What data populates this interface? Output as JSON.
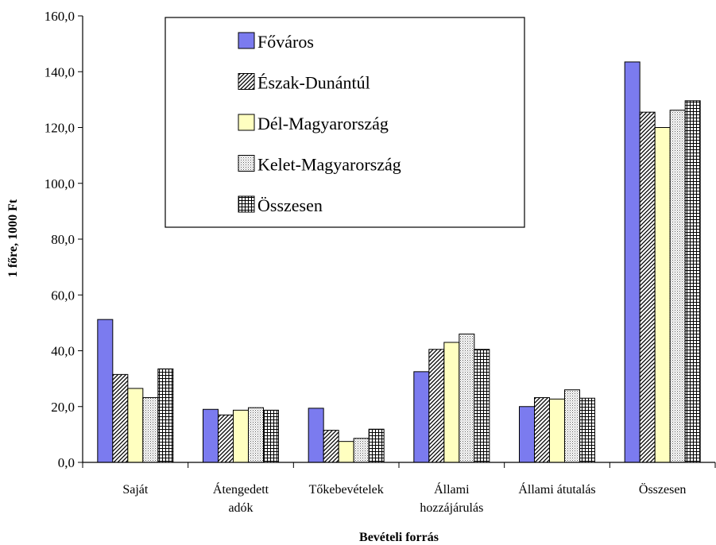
{
  "chart_data": {
    "type": "bar",
    "title": "",
    "xlabel": "Bevételi forrás",
    "ylabel": "1 főre, 1000 Ft",
    "ylim": [
      0,
      160
    ],
    "yticks": [
      "0,0",
      "20,0",
      "40,0",
      "60,0",
      "80,0",
      "100,0",
      "120,0",
      "140,0",
      "160,0"
    ],
    "grid": false,
    "legend_position": "top-center",
    "categories": [
      [
        "Saját"
      ],
      [
        "Átengedett",
        "adók"
      ],
      [
        "Tőkebevételek"
      ],
      [
        "Állami",
        "hozzájárulás"
      ],
      [
        "Állami átutalás"
      ],
      [
        "Összesen"
      ]
    ],
    "series": [
      {
        "name": "Főváros",
        "pattern": "solid",
        "color": "#7b7bef",
        "values": [
          51.2,
          19.0,
          19.4,
          32.5,
          20.0,
          143.5
        ]
      },
      {
        "name": "Észak-Dunántúl",
        "pattern": "diagonal",
        "color": "#000000",
        "values": [
          31.5,
          17.0,
          11.5,
          40.5,
          23.2,
          125.5
        ]
      },
      {
        "name": "Dél-Magyarország",
        "pattern": "solid",
        "color": "#ffffc0",
        "values": [
          26.5,
          18.7,
          7.5,
          43.0,
          22.7,
          120.0
        ]
      },
      {
        "name": "Kelet-Magyarország",
        "pattern": "dots",
        "color": "#000000",
        "values": [
          23.2,
          19.6,
          8.6,
          46.0,
          26.0,
          126.2
        ]
      },
      {
        "name": "Összesen",
        "pattern": "grid",
        "color": "#000000",
        "values": [
          33.5,
          18.7,
          11.9,
          40.5,
          23.0,
          129.6
        ]
      }
    ]
  }
}
